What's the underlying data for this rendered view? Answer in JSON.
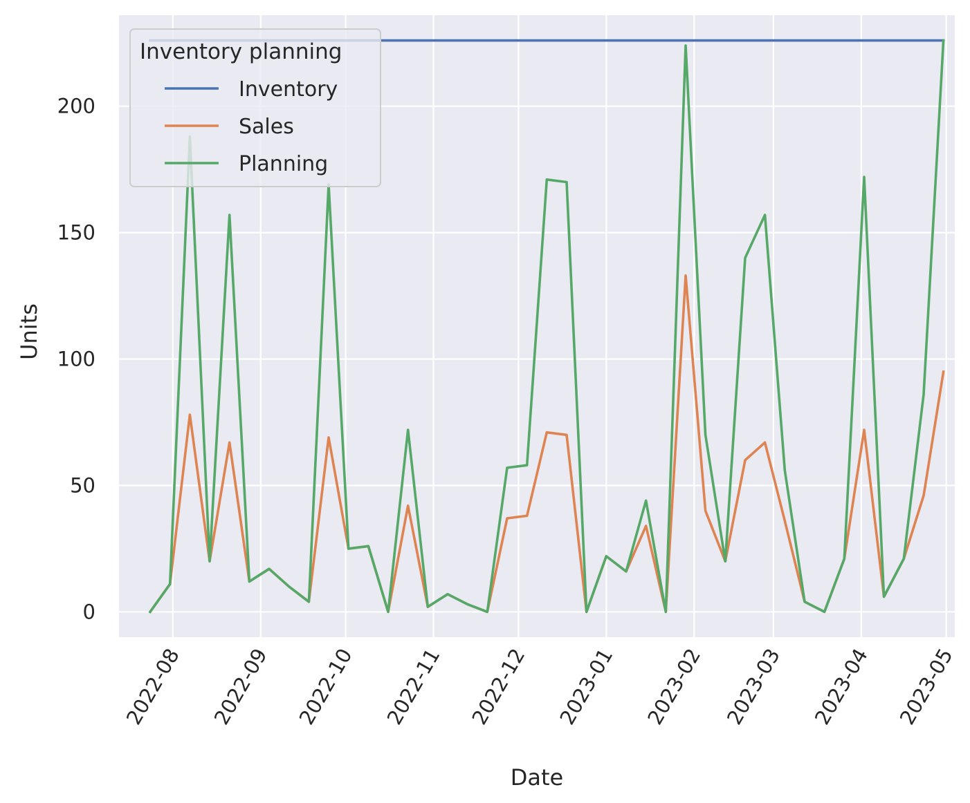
{
  "chart_data": {
    "type": "line",
    "xlabel": "Date",
    "ylabel": "Units",
    "ylim": [
      -10,
      236
    ],
    "yticks": [
      0,
      50,
      100,
      150,
      200
    ],
    "xticks": [
      "2022-08",
      "2022-09",
      "2022-10",
      "2022-11",
      "2022-12",
      "2023-01",
      "2023-02",
      "2023-03",
      "2023-04",
      "2023-05"
    ],
    "xlim": [
      "2022-07-13",
      "2023-05-04"
    ],
    "grid": true,
    "legend": {
      "title": "Inventory planning",
      "position": "top-left"
    },
    "x": [
      "2022-07-24",
      "2022-07-31",
      "2022-08-07",
      "2022-08-14",
      "2022-08-21",
      "2022-08-28",
      "2022-09-04",
      "2022-09-11",
      "2022-09-18",
      "2022-09-25",
      "2022-10-02",
      "2022-10-09",
      "2022-10-16",
      "2022-10-23",
      "2022-10-30",
      "2022-11-06",
      "2022-11-13",
      "2022-11-20",
      "2022-11-27",
      "2022-12-04",
      "2022-12-11",
      "2022-12-18",
      "2022-12-25",
      "2023-01-01",
      "2023-01-08",
      "2023-01-15",
      "2023-01-22",
      "2023-01-29",
      "2023-02-05",
      "2023-02-12",
      "2023-02-19",
      "2023-02-26",
      "2023-03-05",
      "2023-03-12",
      "2023-03-19",
      "2023-03-26",
      "2023-04-02",
      "2023-04-09",
      "2023-04-16",
      "2023-04-23",
      "2023-04-30"
    ],
    "series": [
      {
        "name": "Inventory",
        "color": "#4c72b0",
        "values": [
          226,
          226,
          226,
          226,
          226,
          226,
          226,
          226,
          226,
          226,
          226,
          226,
          226,
          226,
          226,
          226,
          226,
          226,
          226,
          226,
          226,
          226,
          226,
          226,
          226,
          226,
          226,
          226,
          226,
          226,
          226,
          226,
          226,
          226,
          226,
          226,
          226,
          226,
          226,
          226,
          226
        ]
      },
      {
        "name": "Sales",
        "color": "#dd8452",
        "values": [
          0,
          11,
          78,
          20,
          67,
          12,
          17,
          10,
          4,
          69,
          25,
          26,
          0,
          42,
          2,
          7,
          3,
          0,
          37,
          38,
          71,
          70,
          0,
          22,
          16,
          34,
          0,
          133,
          40,
          20,
          60,
          67,
          36,
          4,
          0,
          21,
          72,
          6,
          21,
          46,
          95
        ]
      },
      {
        "name": "Planning",
        "color": "#55a868",
        "values": [
          0,
          11,
          188,
          20,
          157,
          12,
          17,
          10,
          4,
          169,
          25,
          26,
          0,
          72,
          2,
          7,
          3,
          0,
          57,
          58,
          171,
          170,
          0,
          22,
          16,
          44,
          0,
          224,
          70,
          20,
          140,
          157,
          56,
          4,
          0,
          21,
          172,
          6,
          21,
          86,
          226
        ]
      }
    ]
  }
}
